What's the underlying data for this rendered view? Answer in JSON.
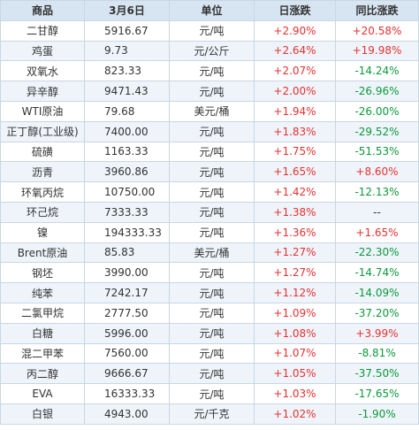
{
  "table": {
    "headers": [
      "商品",
      "3月6日",
      "单位",
      "日涨跌",
      "同比涨跌"
    ],
    "rows": [
      {
        "name": "二甘醇",
        "price": "5916.67",
        "unit": "元/吨",
        "daily": "+2.90%",
        "yoy": "+20.58%",
        "daily_dir": "up",
        "yoy_dir": "up"
      },
      {
        "name": "鸡蛋",
        "price": "9.73",
        "unit": "元/公斤",
        "daily": "+2.64%",
        "yoy": "+19.98%",
        "daily_dir": "up",
        "yoy_dir": "up"
      },
      {
        "name": "双氧水",
        "price": "823.33",
        "unit": "元/吨",
        "daily": "+2.07%",
        "yoy": "-14.24%",
        "daily_dir": "up",
        "yoy_dir": "down"
      },
      {
        "name": "异辛醇",
        "price": "9471.43",
        "unit": "元/吨",
        "daily": "+2.00%",
        "yoy": "-26.96%",
        "daily_dir": "up",
        "yoy_dir": "down"
      },
      {
        "name": "WTI原油",
        "price": "79.68",
        "unit": "美元/桶",
        "daily": "+1.94%",
        "yoy": "-26.00%",
        "daily_dir": "up",
        "yoy_dir": "down"
      },
      {
        "name": "正丁醇(工业级)",
        "price": "7400.00",
        "unit": "元/吨",
        "daily": "+1.83%",
        "yoy": "-29.52%",
        "daily_dir": "up",
        "yoy_dir": "down"
      },
      {
        "name": "硫磺",
        "price": "1163.33",
        "unit": "元/吨",
        "daily": "+1.75%",
        "yoy": "-51.53%",
        "daily_dir": "up",
        "yoy_dir": "down"
      },
      {
        "name": "沥青",
        "price": "3960.86",
        "unit": "元/吨",
        "daily": "+1.65%",
        "yoy": "+8.60%",
        "daily_dir": "up",
        "yoy_dir": "up"
      },
      {
        "name": "环氧丙烷",
        "price": "10750.00",
        "unit": "元/吨",
        "daily": "+1.42%",
        "yoy": "-12.13%",
        "daily_dir": "up",
        "yoy_dir": "down"
      },
      {
        "name": "环己烷",
        "price": "7333.33",
        "unit": "元/吨",
        "daily": "+1.38%",
        "yoy": "--",
        "daily_dir": "up",
        "yoy_dir": "none"
      },
      {
        "name": "镍",
        "price": "194333.33",
        "unit": "元/吨",
        "daily": "+1.36%",
        "yoy": "+1.65%",
        "daily_dir": "up",
        "yoy_dir": "up"
      },
      {
        "name": "Brent原油",
        "price": "85.83",
        "unit": "美元/桶",
        "daily": "+1.27%",
        "yoy": "-22.30%",
        "daily_dir": "up",
        "yoy_dir": "down"
      },
      {
        "name": "钢坯",
        "price": "3990.00",
        "unit": "元/吨",
        "daily": "+1.27%",
        "yoy": "-14.74%",
        "daily_dir": "up",
        "yoy_dir": "down"
      },
      {
        "name": "纯苯",
        "price": "7242.17",
        "unit": "元/吨",
        "daily": "+1.12%",
        "yoy": "-14.09%",
        "daily_dir": "up",
        "yoy_dir": "down"
      },
      {
        "name": "二氯甲烷",
        "price": "2777.50",
        "unit": "元/吨",
        "daily": "+1.09%",
        "yoy": "-37.20%",
        "daily_dir": "up",
        "yoy_dir": "down"
      },
      {
        "name": "白糖",
        "price": "5996.00",
        "unit": "元/吨",
        "daily": "+1.08%",
        "yoy": "+3.99%",
        "daily_dir": "up",
        "yoy_dir": "up"
      },
      {
        "name": "混二甲苯",
        "price": "7560.00",
        "unit": "元/吨",
        "daily": "+1.07%",
        "yoy": "-8.81%",
        "daily_dir": "up",
        "yoy_dir": "down"
      },
      {
        "name": "丙二醇",
        "price": "9666.67",
        "unit": "元/吨",
        "daily": "+1.05%",
        "yoy": "-37.50%",
        "daily_dir": "up",
        "yoy_dir": "down"
      },
      {
        "name": "EVA",
        "price": "16333.33",
        "unit": "元/吨",
        "daily": "+1.03%",
        "yoy": "-17.65%",
        "daily_dir": "up",
        "yoy_dir": "down"
      },
      {
        "name": "白银",
        "price": "4943.00",
        "unit": "元/千克",
        "daily": "+1.02%",
        "yoy": "-1.90%",
        "daily_dir": "up",
        "yoy_dir": "down"
      }
    ]
  },
  "colors": {
    "up": "#e8312f",
    "down": "#0a9a3a",
    "header_bg": "#d7e4f1"
  }
}
